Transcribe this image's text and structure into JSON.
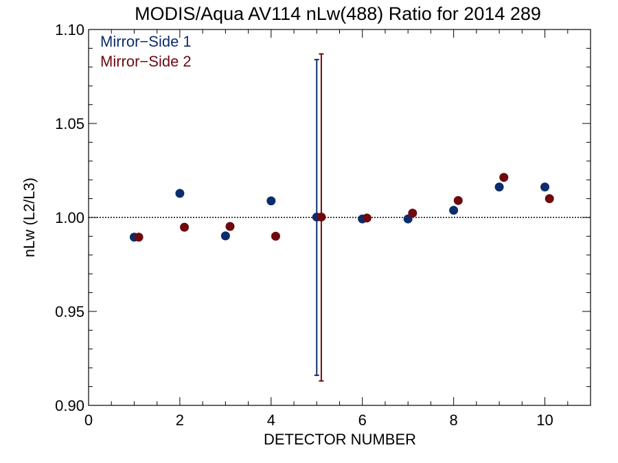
{
  "chart_data": {
    "type": "scatter",
    "title": "MODIS/Aqua AV114 nLw(488) Ratio for 2014 289",
    "xlabel": "DETECTOR NUMBER",
    "ylabel": "nLw (L2/L3)",
    "xlim": [
      0,
      11
    ],
    "ylim": [
      0.9,
      1.1
    ],
    "xticks": [
      0,
      2,
      4,
      6,
      8,
      10
    ],
    "xtick_labels": [
      "0",
      "2",
      "4",
      "6",
      "8",
      "10"
    ],
    "yticks": [
      0.9,
      0.95,
      1.0,
      1.05,
      1.1
    ],
    "ytick_labels": [
      "0.90",
      "0.95",
      "1.00",
      "1.05",
      "1.10"
    ],
    "reference_line": 1.0,
    "legend_position": "top-left",
    "series": [
      {
        "name": "Mirror−Side 1",
        "color": "#0b2d6b",
        "x": [
          1,
          2,
          3,
          4,
          5,
          6,
          7,
          8,
          9,
          10
        ],
        "y": [
          0.9895,
          1.0128,
          0.9902,
          1.0088,
          1.0002,
          0.9992,
          0.9992,
          1.0038,
          1.0162,
          1.0162
        ],
        "errorbar": {
          "x": 5,
          "low": 0.916,
          "high": 1.084
        }
      },
      {
        "name": "Mirror−Side 2",
        "color": "#6e0a0f",
        "x": [
          1.1,
          2.1,
          3.1,
          4.1,
          5.1,
          6.1,
          7.1,
          8.1,
          9.1,
          10.1
        ],
        "y": [
          0.9895,
          0.9948,
          0.9952,
          0.99,
          1.0002,
          0.9997,
          1.0023,
          1.009,
          1.0213,
          1.01
        ],
        "errorbar": {
          "x": 5.1,
          "low": 0.913,
          "high": 1.087
        }
      }
    ]
  }
}
